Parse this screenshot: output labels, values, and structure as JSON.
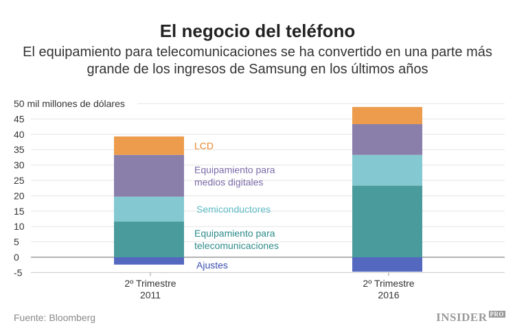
{
  "title": "El negocio del teléfono",
  "subtitle": "El equipamiento para telecomunicaciones se ha convertido en una parte más grande de los ingresos de Samsung en los últimos años",
  "source": "Fuente: Bloomberg",
  "logo": {
    "main": "INSIDER",
    "sub": "PRO"
  },
  "chart_data": {
    "type": "bar",
    "stacked": true,
    "ylabel": "50 mil millones de dólares",
    "ylim": [
      -5,
      50
    ],
    "yticks": [
      50,
      45,
      40,
      35,
      30,
      25,
      20,
      15,
      10,
      5,
      0,
      -5
    ],
    "grid": true,
    "categories": [
      [
        "2º Trimestre",
        "2011"
      ],
      [
        "2º Trimestre",
        "2016"
      ]
    ],
    "series": [
      {
        "name": "Ajustes",
        "color": "#5468c0",
        "values": [
          -2.4,
          -4.7
        ],
        "label_lines": [
          "Ajustes"
        ]
      },
      {
        "name": "Equipamiento para telecomunicaciones",
        "color": "#4a9b9b",
        "values": [
          11.6,
          23.3
        ],
        "label_lines": [
          "Equipamiento para",
          "telecomunicaciones"
        ]
      },
      {
        "name": "Semiconductores",
        "color": "#84c9d1",
        "values": [
          8.1,
          10.0
        ],
        "label_lines": [
          "Semiconductores"
        ]
      },
      {
        "name": "Equipamiento para medios digitales",
        "color": "#8a7fab",
        "values": [
          13.6,
          10.0
        ],
        "label_lines": [
          "Equipamiento para",
          "medios digitales"
        ]
      },
      {
        "name": "LCD",
        "color": "#ec9c4c",
        "values": [
          6.0,
          5.6
        ],
        "label_lines": [
          "LCD"
        ]
      }
    ],
    "label_colors": {
      "Ajustes": "#3a4fb0",
      "Equipamiento para telecomunicaciones": "#2e8a8a",
      "Semiconductores": "#5fbcc6",
      "Equipamiento para medios digitales": "#7a6aa8",
      "LCD": "#e8872e"
    }
  }
}
